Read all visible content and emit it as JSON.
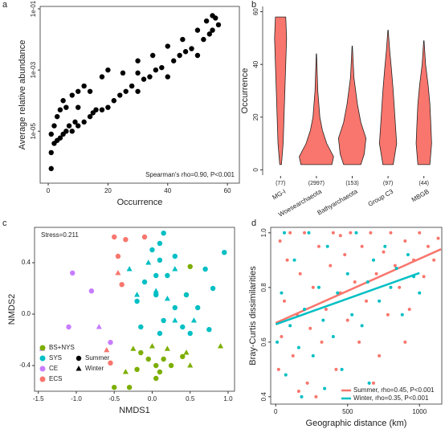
{
  "chart_data": [
    {
      "type": "scatter",
      "panel": "a",
      "frame": "box",
      "xlabel": "Occurrence",
      "ylabel": "Average relative abundance",
      "annotation": "Spearman's rho=0.90, P<0.001",
      "log_y": true,
      "color": "#000000",
      "xlim": [
        -2.7,
        64
      ],
      "xticks": [
        0,
        20,
        40,
        60
      ],
      "ylim": [
        2e-07,
        0.12
      ],
      "yticks": [
        {
          "value": 1e-05,
          "label": "1e-05"
        },
        {
          "value": 0.001,
          "label": "1e-03"
        },
        {
          "value": 0.1,
          "label": "1e-01"
        }
      ],
      "series": [
        {
          "x": [
            1,
            1,
            1,
            2,
            2,
            3,
            3,
            4,
            4,
            5,
            5,
            6,
            6,
            7,
            8,
            8,
            9,
            10,
            10,
            10,
            12,
            12,
            14,
            14,
            15,
            16,
            18,
            18,
            20,
            20,
            22,
            24,
            25,
            26,
            28,
            30,
            30,
            30,
            32,
            34,
            35,
            36,
            38,
            40,
            40,
            42,
            44,
            45,
            46,
            48,
            50,
            50,
            52,
            53,
            54,
            55,
            55,
            56,
            57
          ],
          "y": [
            6e-07,
            2e-06,
            8e-06,
            4e-06,
            1.5e-05,
            5e-06,
            3e-05,
            6e-06,
            5e-05,
            8e-06,
            0.0001,
            1e-05,
            6e-05,
            1.5e-05,
            1e-05,
            0.00015,
            2e-05,
            1.5e-05,
            6e-05,
            0.0002,
            2e-05,
            0.0003,
            3e-05,
            0.0002,
            4e-05,
            5e-05,
            5e-05,
            0.0006,
            6e-05,
            0.001,
            0.0001,
            0.00015,
            0.0008,
            0.0002,
            0.0003,
            0.0002,
            0.0008,
            0.002,
            0.0005,
            0.0006,
            0.003,
            0.001,
            0.0012,
            0.0006,
            0.006,
            0.002,
            0.003,
            0.01,
            0.004,
            0.005,
            0.003,
            0.02,
            0.01,
            0.04,
            0.015,
            0.02,
            0.06,
            0.05,
            0.03
          ]
        }
      ]
    },
    {
      "type": "violin",
      "panel": "b",
      "frame": "axis",
      "ylabel": "Occurrence",
      "color": "#f8766d",
      "categories": [
        "MG-I",
        "Woesearchaeota",
        "Bathyarchaeota",
        "Group C3",
        "MBGB"
      ],
      "counts": [
        "(77)",
        "(2997)",
        "(153)",
        "(97)",
        "(44)"
      ],
      "ylim": [
        -2,
        62
      ],
      "yticks": [
        0,
        20,
        40,
        60
      ],
      "series": [
        {
          "levels": [
            2,
            10,
            20,
            30,
            40,
            50,
            58
          ],
          "widths": [
            0.05,
            0.15,
            0.2,
            0.25,
            0.3,
            0.35,
            0.3
          ]
        },
        {
          "levels": [
            2,
            5,
            10,
            15,
            20,
            30,
            44
          ],
          "widths": [
            0.9,
            1.0,
            0.6,
            0.35,
            0.2,
            0.08,
            0.01
          ]
        },
        {
          "levels": [
            2,
            6,
            12,
            18,
            25,
            35,
            47
          ],
          "widths": [
            0.5,
            0.7,
            0.8,
            0.5,
            0.3,
            0.1,
            0.01
          ]
        },
        {
          "levels": [
            2,
            10,
            20,
            30,
            38,
            45,
            53
          ],
          "widths": [
            0.3,
            0.5,
            0.4,
            0.3,
            0.2,
            0.1,
            0.01
          ]
        },
        {
          "levels": [
            2,
            10,
            18,
            25,
            32,
            40,
            49
          ],
          "widths": [
            0.35,
            0.45,
            0.4,
            0.35,
            0.25,
            0.1,
            0.01
          ]
        }
      ]
    },
    {
      "type": "scatter",
      "panel": "c",
      "frame": "box",
      "xlabel": "NMDS1",
      "ylabel": "NMDS2",
      "annotation": "Stress=0.211",
      "xlim": [
        -1.55,
        1.085
      ],
      "xticks": [
        -1.5,
        {
          "value": -1,
          "label": "-1.0"
        },
        -0.5,
        {
          "value": 0,
          "label": "0.0"
        },
        0.5,
        {
          "value": 1,
          "label": "1.0"
        }
      ],
      "ylim": [
        -0.6,
        0.675
      ],
      "yticks": [
        -0.4,
        {
          "value": 0,
          "label": "0.0"
        },
        0.4
      ],
      "shapes": [
        {
          "name": "Summer",
          "marker": "circle"
        },
        {
          "name": "Winter",
          "marker": "triangle"
        }
      ],
      "series": [
        {
          "name": "BS+NYS",
          "color": "#7cae00",
          "groups": [
            {
              "x": [
                0.5,
                0.45,
                -0.15,
                -0.05,
                0.05,
                0.15,
                0.25,
                0.1,
                -0.2,
                0.4,
                -0.5,
                -0.3,
                0.05
              ],
              "y": [
                0.37,
                0.15,
                -0.3,
                -0.35,
                -0.4,
                -0.35,
                -0.4,
                -0.45,
                -0.43,
                -0.33,
                -0.57,
                -0.57,
                -0.5
              ]
            },
            {
              "x": [
                -0.25,
                -0.35,
                0.0,
                0.45,
                0.9,
                0.2,
                0.5
              ],
              "y": [
                -0.27,
                -0.45,
                -0.25,
                -0.3,
                -0.25,
                -0.27,
                -0.4
              ]
            }
          ]
        },
        {
          "name": "SYS",
          "color": "#00bfc4",
          "groups": [
            {
              "x": [
                0.1,
                0.15,
                0.0,
                0.1,
                0.3,
                0.05,
                0.2,
                -0.1,
                0.05,
                0.45,
                0.3,
                0.6,
                0.8,
                0.95,
                0.7,
                -0.2,
                0.15,
                0.5,
                0.4,
                0.75,
                0.1,
                -0.15
              ],
              "y": [
                0.55,
                0.63,
                0.5,
                0.42,
                0.45,
                0.3,
                0.3,
                0.25,
                0.15,
                0.15,
                0.05,
                0.05,
                0.2,
                0.48,
                0.35,
                0.1,
                -0.05,
                -0.15,
                -0.1,
                -0.12,
                -0.15,
                -0.1
              ]
            },
            {
              "x": [
                -0.3,
                -0.05,
                0.3,
                -0.2,
                0.05,
                0.3,
                0.55,
                0.2
              ],
              "y": [
                0.35,
                0.4,
                0.35,
                0.15,
                0.18,
                -0.05,
                -0.05,
                0.12
              ]
            }
          ]
        },
        {
          "name": "CE",
          "color": "#c77cff",
          "groups": [
            {
              "x": [
                -1.05,
                -1.1,
                -0.8,
                -0.55
              ],
              "y": [
                0.32,
                -0.1,
                0.18,
                -0.22
              ]
            },
            {
              "x": [
                -1.45,
                -0.7
              ],
              "y": [
                -0.27,
                -0.1
              ]
            }
          ]
        },
        {
          "name": "ECS",
          "color": "#f8766d",
          "groups": [
            {
              "x": [
                -0.5,
                -0.35,
                -0.1,
                -0.45,
                -0.4,
                -0.55
              ],
              "y": [
                0.6,
                0.58,
                0.6,
                0.45,
                0.23,
                -0.38
              ]
            },
            {
              "x": [
                -0.45,
                -0.6
              ],
              "y": [
                0.32,
                -0.28
              ]
            }
          ]
        }
      ]
    },
    {
      "type": "scatter",
      "panel": "d",
      "frame": "box",
      "xlabel": "Geographic distance (km)",
      "ylabel": "Bray-Curtis dissimilarities",
      "xlim": [
        -35,
        1155
      ],
      "xticks": [
        0,
        500,
        1000
      ],
      "ylim": [
        0.373,
        1.02
      ],
      "yticks": [
        0.4,
        0.6,
        0.8,
        {
          "value": 1,
          "label": "1.0"
        }
      ],
      "series": [
        {
          "name": "Summer, rho=0.45, P<0.001",
          "color": "#f8766d",
          "x": [
            20,
            40,
            60,
            80,
            100,
            120,
            150,
            170,
            200,
            220,
            240,
            260,
            300,
            320,
            350,
            380,
            400,
            420,
            450,
            480,
            500,
            520,
            550,
            580,
            600,
            630,
            660,
            700,
            720,
            750,
            780,
            800,
            830,
            860,
            900,
            930,
            960,
            1000,
            1030,
            1060,
            1100,
            1130,
            680,
            280,
            30,
            160,
            450,
            900
          ],
          "y": [
            0.5,
            0.62,
            0.75,
            0.9,
            1.0,
            0.55,
            0.7,
            0.85,
            1.0,
            0.45,
            0.65,
            0.8,
            0.95,
            0.6,
            0.72,
            0.88,
            1.0,
            0.5,
            0.78,
            0.92,
            0.68,
            1.0,
            0.82,
            0.6,
            0.95,
            0.75,
            1.0,
            0.85,
            0.55,
            0.93,
            0.7,
            1.0,
            0.88,
            0.8,
            0.97,
            0.72,
            0.9,
            1.0,
            0.84,
            0.95,
            0.9,
            0.98,
            0.45,
            0.4,
            0.97,
            0.42,
            0.99,
            0.6
          ],
          "fit_x": [
            0,
            1150
          ],
          "fit_y": [
            0.67,
            0.94
          ]
        },
        {
          "name": "Winter, rho=0.35, P<0.001",
          "color": "#00bfc4",
          "x": [
            10,
            40,
            70,
            100,
            130,
            160,
            200,
            230,
            260,
            300,
            330,
            360,
            400,
            430,
            460,
            500,
            530,
            560,
            600,
            640,
            680,
            720,
            760,
            800,
            840,
            880,
            920,
            960,
            1000,
            180,
            650,
            60,
            340
          ],
          "y": [
            0.6,
            0.78,
            0.48,
            0.66,
            0.9,
            0.58,
            0.72,
            1.0,
            0.55,
            0.8,
            0.68,
            0.95,
            0.62,
            0.78,
            0.5,
            0.85,
            0.7,
            1.0,
            0.66,
            0.82,
            0.9,
            0.75,
            0.95,
            0.8,
            0.87,
            0.7,
            0.92,
            0.84,
            0.78,
            0.4,
            0.45,
            1.0,
            0.43
          ],
          "fit_x": [
            0,
            1000
          ],
          "fit_y": [
            0.665,
            0.853
          ]
        }
      ]
    }
  ]
}
